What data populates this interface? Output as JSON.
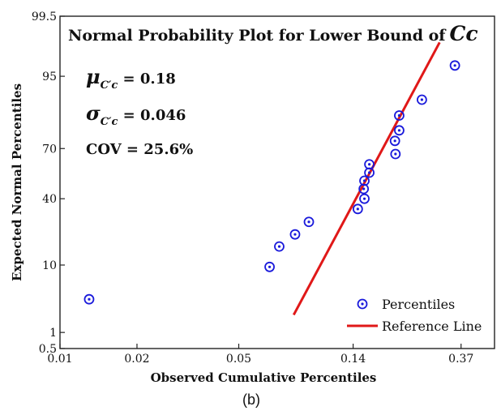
{
  "chart_data": {
    "type": "scatter",
    "title_main": "Normal Probability Plot for Lower Bound of",
    "title_symbol": "Cc",
    "stats": {
      "mu_label": "μ",
      "mu_sub": "C′c",
      "mu_value": " = 0.18",
      "sigma_label": "σ",
      "sigma_sub": "C′c",
      "sigma_value": " = 0.046",
      "cov": "COV = 25.6%"
    },
    "xlabel": "Observed Cumulative Percentiles",
    "ylabel": "Expected Normal Percentiles",
    "x_ticks": [
      "0.01",
      "0.02",
      "0.05",
      "0.14",
      "0.37"
    ],
    "y_ticks": [
      "0.5",
      "1",
      "10",
      "40",
      "70",
      "95",
      "99.5"
    ],
    "caption": "(b)",
    "legend": {
      "placement": "bottom-right",
      "items": [
        {
          "label": "Percentiles",
          "marker": "circle-dot",
          "color": "#1a1adb"
        },
        {
          "label": "Reference Line",
          "marker": "line",
          "color": "#e01818"
        }
      ]
    },
    "series": [
      {
        "name": "Percentiles",
        "color": "#1a1adb",
        "points": [
          {
            "x": 0.013,
            "y": 3.5
          },
          {
            "x": 0.066,
            "y": 9.5
          },
          {
            "x": 0.072,
            "y": 16
          },
          {
            "x": 0.083,
            "y": 21
          },
          {
            "x": 0.094,
            "y": 27
          },
          {
            "x": 0.146,
            "y": 34
          },
          {
            "x": 0.155,
            "y": 40
          },
          {
            "x": 0.154,
            "y": 46
          },
          {
            "x": 0.155,
            "y": 51
          },
          {
            "x": 0.162,
            "y": 56
          },
          {
            "x": 0.162,
            "y": 61
          },
          {
            "x": 0.205,
            "y": 67
          },
          {
            "x": 0.204,
            "y": 74
          },
          {
            "x": 0.212,
            "y": 79
          },
          {
            "x": 0.212,
            "y": 85
          },
          {
            "x": 0.26,
            "y": 90
          },
          {
            "x": 0.35,
            "y": 96.5
          }
        ]
      },
      {
        "name": "Reference Line",
        "color": "#e01818",
        "line": [
          {
            "x": 0.082,
            "y": 2
          },
          {
            "x": 0.305,
            "y": 98.5
          }
        ]
      }
    ]
  }
}
